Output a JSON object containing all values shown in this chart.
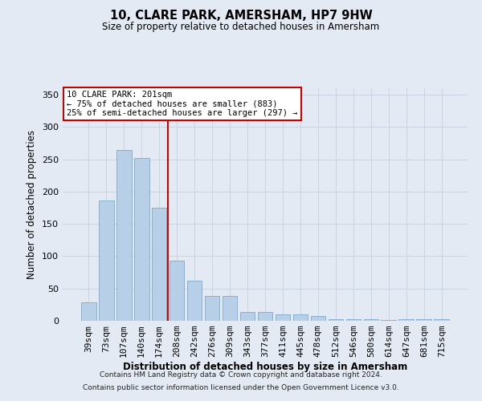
{
  "title": "10, CLARE PARK, AMERSHAM, HP7 9HW",
  "subtitle": "Size of property relative to detached houses in Amersham",
  "xlabel": "Distribution of detached houses by size in Amersham",
  "ylabel": "Number of detached properties",
  "categories": [
    "39sqm",
    "73sqm",
    "107sqm",
    "140sqm",
    "174sqm",
    "208sqm",
    "242sqm",
    "276sqm",
    "309sqm",
    "343sqm",
    "377sqm",
    "411sqm",
    "445sqm",
    "478sqm",
    "512sqm",
    "546sqm",
    "580sqm",
    "614sqm",
    "647sqm",
    "681sqm",
    "715sqm"
  ],
  "values": [
    28,
    186,
    265,
    252,
    175,
    93,
    62,
    38,
    38,
    14,
    14,
    10,
    10,
    7,
    3,
    3,
    2,
    1,
    2,
    2,
    2
  ],
  "bar_color": "#b8cfe8",
  "bar_edgecolor": "#7aaad0",
  "vline_x": 4.5,
  "vline_color": "#cc0000",
  "annotation_text": "10 CLARE PARK: 201sqm\n← 75% of detached houses are smaller (883)\n25% of semi-detached houses are larger (297) →",
  "annotation_box_facecolor": "#ffffff",
  "annotation_box_edgecolor": "#cc0000",
  "ylim": [
    0,
    360
  ],
  "yticks": [
    0,
    50,
    100,
    150,
    200,
    250,
    300,
    350
  ],
  "grid_color": "#c8d4e4",
  "background_color": "#e4eaf4",
  "footer_line1": "Contains HM Land Registry data © Crown copyright and database right 2024.",
  "footer_line2": "Contains public sector information licensed under the Open Government Licence v3.0."
}
